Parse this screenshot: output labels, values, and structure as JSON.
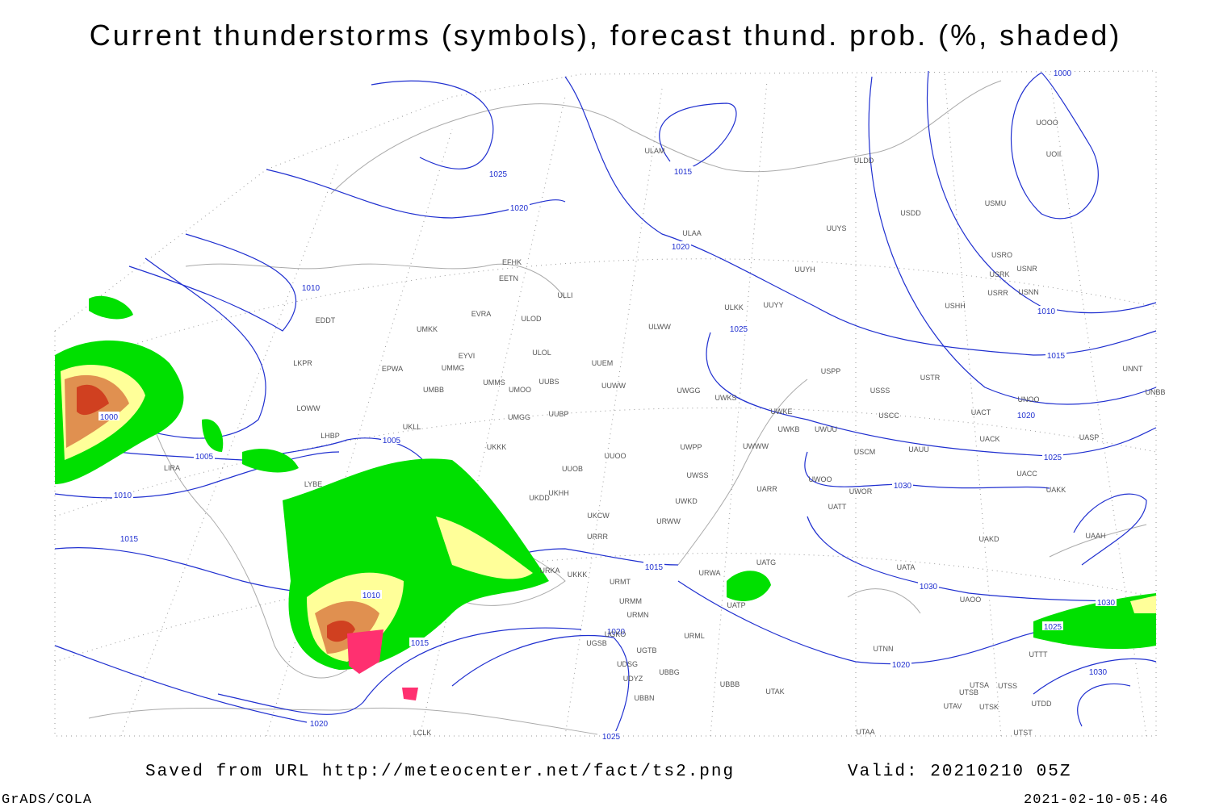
{
  "title": "Current thunderstorms (symbols), forecast thund. prob. (%, shaded)",
  "footer": {
    "source": "Saved from URL http://meteocenter.net/fact/ts2.png",
    "valid": "Valid: 20210210 05Z",
    "software": "GrADS/COLA",
    "timestamp": "2021-02-10-05:46"
  },
  "map": {
    "isobar_labels": [
      1025,
      1015,
      1020,
      1020,
      1010,
      1025,
      1000,
      1010,
      1015,
      1020,
      1025,
      1030,
      1000,
      1005,
      1005,
      1010,
      1015,
      1015,
      1010,
      1030,
      1030,
      1025,
      1020,
      1015,
      1020,
      1030,
      1020,
      1025
    ],
    "stations": [
      "ULAM",
      "ULDD",
      "USDD",
      "USMU",
      "UOOO",
      "UOII",
      "ULAA",
      "UUYS",
      "UUYH",
      "USRO",
      "USNR",
      "USRK",
      "USRR",
      "USNN",
      "USHH",
      "EFHK",
      "EETN",
      "ULLI",
      "ULKK",
      "UUYY",
      "EVRA",
      "ULOD",
      "UMKK",
      "EDDT",
      "ULWW",
      "EYVI",
      "ULOL",
      "UUEM",
      "LKPR",
      "EPWA",
      "UMMG",
      "UMMS",
      "UMOO",
      "UUBS",
      "UUWW",
      "UMBB",
      "UWGG",
      "UWKS",
      "USPP",
      "USTR",
      "USSS",
      "UNOO",
      "UNNT",
      "UNBB",
      "LOWW",
      "UUBP",
      "UMGG",
      "UWKE",
      "UWKB",
      "UWUU",
      "USCC",
      "UACT",
      "LHBP",
      "UKLL",
      "UKKK",
      "UUOO",
      "UWPP",
      "UWWW",
      "USCM",
      "UAUU",
      "UACK",
      "UASP",
      "LIRA",
      "LYBE",
      "UUOB",
      "UWSS",
      "UARR",
      "UWOO",
      "UWOR",
      "UACC",
      "UAKK",
      "UKHH",
      "UKDD",
      "UKCW",
      "UWKD",
      "URWW",
      "UATT",
      "URRR",
      "UAKD",
      "UAAH",
      "URKA",
      "UKKK",
      "URMT",
      "URWA",
      "UATG",
      "UATA",
      "UATP",
      "URMM",
      "URMN",
      "UAOO",
      "URML",
      "UGKO",
      "UGSB",
      "UGTB",
      "UTNN",
      "UDSG",
      "UBBG",
      "UDYZ",
      "UBBB",
      "UBBN",
      "UTAK",
      "UTSB",
      "UTSA",
      "UTSS",
      "UTAV",
      "UTSK",
      "UTDD",
      "UTAA",
      "UTST",
      "LCLK",
      "UTTT"
    ]
  }
}
